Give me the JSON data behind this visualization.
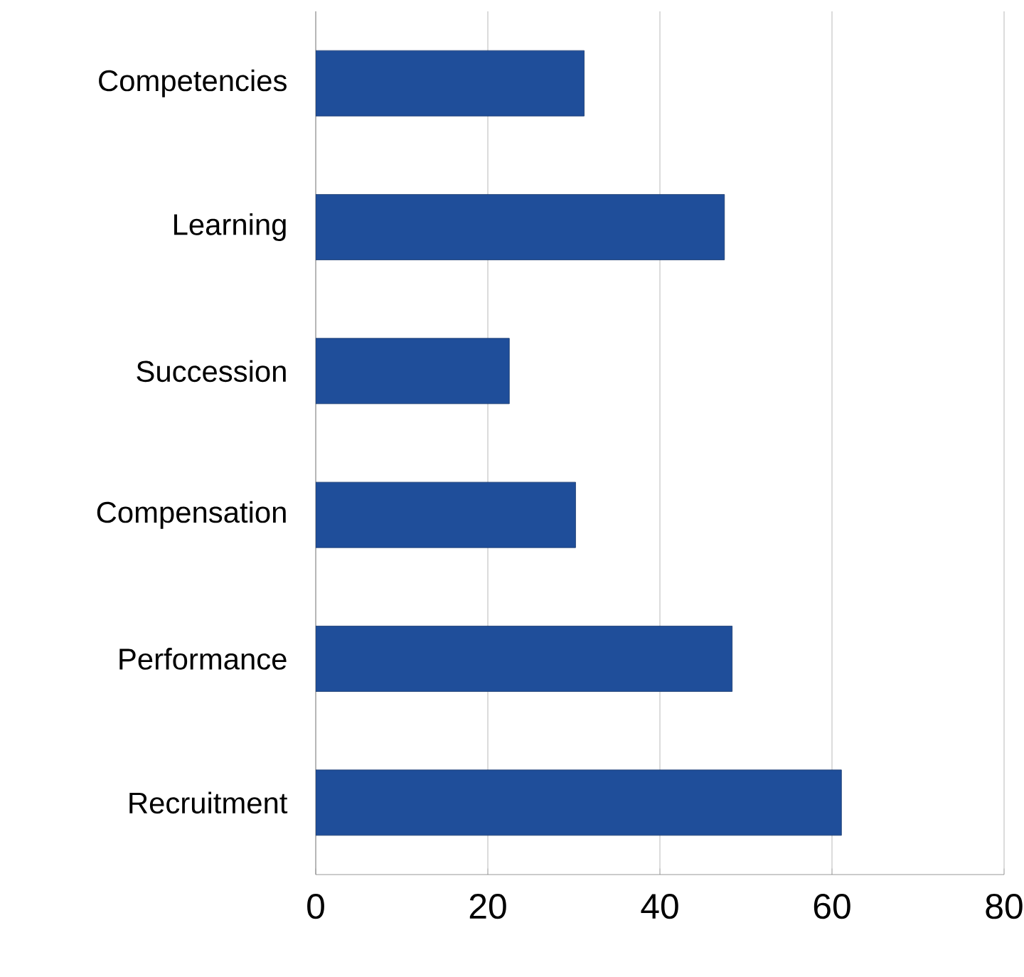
{
  "chart_data": {
    "type": "bar",
    "orientation": "horizontal",
    "categories": [
      "Competencies",
      "Learning",
      "Succession",
      "Compensation",
      "Performance",
      "Recruitment"
    ],
    "values": [
      31.2,
      47.5,
      22.5,
      30.2,
      48.4,
      61.1
    ],
    "color": "#1f4e9a",
    "xlim": [
      0,
      80
    ],
    "xticks": [
      0,
      20,
      40,
      60,
      80
    ],
    "grid": "x"
  }
}
